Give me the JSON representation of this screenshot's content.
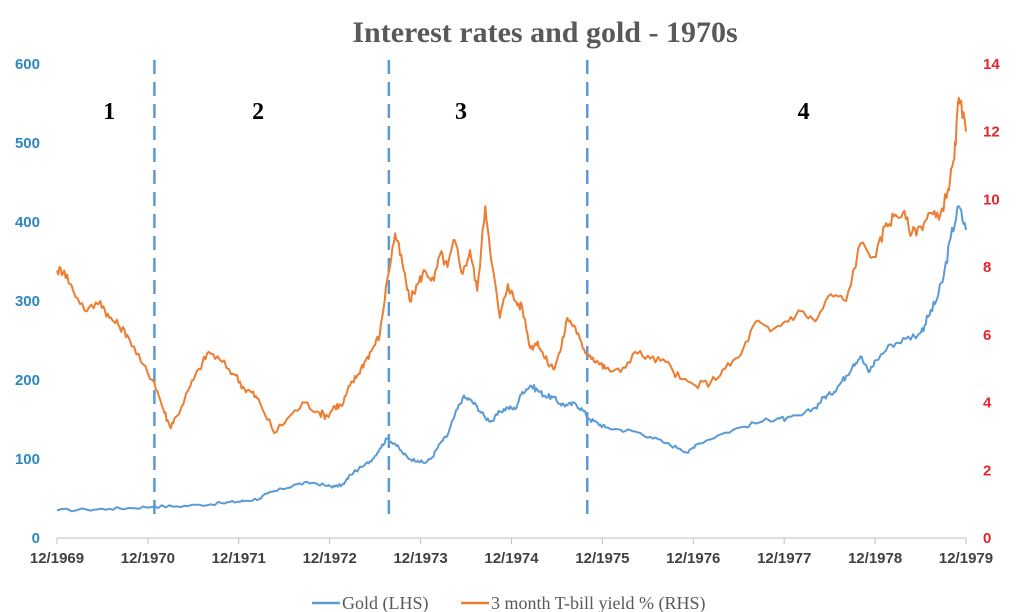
{
  "chart_data": {
    "type": "line",
    "title": "Interest rates and gold - 1970s",
    "x_ticks": [
      "12/1969",
      "12/1970",
      "12/1971",
      "12/1972",
      "12/1973",
      "12/1974",
      "12/1975",
      "12/1976",
      "12/1977",
      "12/1978",
      "12/1979"
    ],
    "y_left": {
      "range": [
        0,
        600
      ],
      "ticks": [
        "0",
        "100",
        "200",
        "300",
        "400",
        "500",
        "600"
      ],
      "color": "#2E86C1"
    },
    "y_right": {
      "range": [
        0,
        14
      ],
      "ticks": [
        "0",
        "2",
        "4",
        "6",
        "8",
        "10",
        "12",
        "14"
      ],
      "color": "#E3262B"
    },
    "grid": false,
    "legend_position": "bottom",
    "period_markers": [
      {
        "label": "1",
        "x": "1970.50",
        "divider_after": "1971.00"
      },
      {
        "label": "2",
        "x": "1972.15",
        "divider_after": "1973.60"
      },
      {
        "label": "3",
        "x": "1974.40",
        "divider_after": "1975.80"
      },
      {
        "label": "4",
        "x": "1978.20"
      }
    ],
    "series": [
      {
        "name": "Gold (LHS)",
        "axis": "left",
        "color": "#5B9BD5",
        "x": [
          1969.92,
          1970.25,
          1970.5,
          1970.75,
          1971.0,
          1971.25,
          1971.5,
          1971.75,
          1971.92,
          1972.0,
          1972.17,
          1972.25,
          1972.42,
          1972.58,
          1972.75,
          1972.92,
          1973.0,
          1973.1,
          1973.17,
          1973.33,
          1973.42,
          1973.5,
          1973.58,
          1973.67,
          1973.75,
          1973.83,
          1973.92,
          1974.0,
          1974.08,
          1974.17,
          1974.25,
          1974.33,
          1974.42,
          1974.5,
          1974.58,
          1974.67,
          1974.75,
          1974.83,
          1974.92,
          1975.0,
          1975.08,
          1975.17,
          1975.25,
          1975.33,
          1975.42,
          1975.5,
          1975.58,
          1975.67,
          1975.75,
          1975.83,
          1975.92,
          1976.0,
          1976.17,
          1976.33,
          1976.5,
          1976.67,
          1976.83,
          1976.92,
          1977.0,
          1977.25,
          1977.5,
          1977.75,
          1977.92,
          1978.0,
          1978.17,
          1978.33,
          1978.42,
          1978.5,
          1978.58,
          1978.67,
          1978.75,
          1978.83,
          1978.92,
          1979.0,
          1979.17,
          1979.33,
          1979.5,
          1979.58,
          1979.67,
          1979.75,
          1979.83,
          1979.92,
          1980.0
        ],
        "values": [
          35,
          36,
          37,
          38,
          40,
          40,
          42,
          44,
          46,
          47,
          50,
          56,
          62,
          68,
          70,
          66,
          65,
          68,
          80,
          92,
          100,
          113,
          126,
          119,
          108,
          100,
          98,
          95,
          102,
          120,
          130,
          155,
          178,
          175,
          166,
          152,
          148,
          160,
          165,
          163,
          185,
          193,
          187,
          180,
          178,
          170,
          168,
          170,
          162,
          150,
          145,
          140,
          137,
          135,
          128,
          120,
          113,
          108,
          118,
          130,
          140,
          148,
          152,
          150,
          155,
          165,
          178,
          182,
          192,
          205,
          220,
          230,
          210,
          225,
          245,
          252,
          260,
          280,
          300,
          330,
          380,
          420,
          390
        ]
      },
      {
        "name": "3 month T-bill yield % (RHS)",
        "axis": "right",
        "color": "#ED7D31",
        "x": [
          1969.92,
          1970.0,
          1970.1,
          1970.25,
          1970.4,
          1970.5,
          1970.6,
          1970.7,
          1970.85,
          1971.0,
          1971.1,
          1971.17,
          1971.25,
          1971.4,
          1971.5,
          1971.6,
          1971.75,
          1971.9,
          1972.0,
          1972.08,
          1972.17,
          1972.33,
          1972.5,
          1972.67,
          1972.83,
          1972.92,
          1973.0,
          1973.08,
          1973.17,
          1973.25,
          1973.33,
          1973.42,
          1973.5,
          1973.58,
          1973.67,
          1973.75,
          1973.83,
          1973.92,
          1974.0,
          1974.1,
          1974.17,
          1974.25,
          1974.33,
          1974.42,
          1974.5,
          1974.58,
          1974.67,
          1974.75,
          1974.83,
          1974.92,
          1975.0,
          1975.08,
          1975.17,
          1975.25,
          1975.33,
          1975.42,
          1975.5,
          1975.58,
          1975.67,
          1975.75,
          1975.83,
          1975.92,
          1976.0,
          1976.17,
          1976.33,
          1976.5,
          1976.67,
          1976.83,
          1977.0,
          1977.17,
          1977.33,
          1977.5,
          1977.67,
          1977.83,
          1978.0,
          1978.17,
          1978.33,
          1978.5,
          1978.67,
          1978.83,
          1979.0,
          1979.1,
          1979.2,
          1979.3,
          1979.4,
          1979.5,
          1979.6,
          1979.7,
          1979.8,
          1979.87,
          1979.92,
          1980.0
        ],
        "values": [
          7.9,
          7.9,
          7.3,
          6.7,
          7.0,
          6.5,
          6.3,
          6.0,
          5.2,
          4.6,
          3.8,
          3.3,
          3.6,
          4.5,
          5.0,
          5.5,
          5.2,
          4.8,
          4.4,
          4.3,
          4.0,
          3.1,
          3.6,
          4.0,
          3.7,
          3.6,
          3.9,
          3.9,
          4.5,
          4.8,
          5.2,
          5.6,
          6.0,
          7.6,
          9.0,
          8.1,
          7.0,
          7.5,
          7.9,
          7.6,
          8.4,
          8.0,
          8.8,
          7.8,
          8.5,
          7.3,
          9.8,
          8.0,
          6.5,
          7.5,
          7.0,
          6.8,
          5.6,
          5.8,
          5.3,
          5.0,
          5.5,
          6.5,
          6.2,
          5.6,
          5.4,
          5.2,
          5.0,
          4.9,
          5.5,
          5.3,
          5.2,
          4.7,
          4.5,
          4.6,
          5.0,
          5.4,
          6.4,
          6.1,
          6.4,
          6.7,
          6.4,
          7.2,
          7.0,
          8.7,
          8.3,
          9.2,
          9.5,
          9.6,
          9.0,
          9.2,
          9.6,
          9.4,
          10.3,
          11.2,
          13.0,
          12.0
        ]
      }
    ]
  }
}
